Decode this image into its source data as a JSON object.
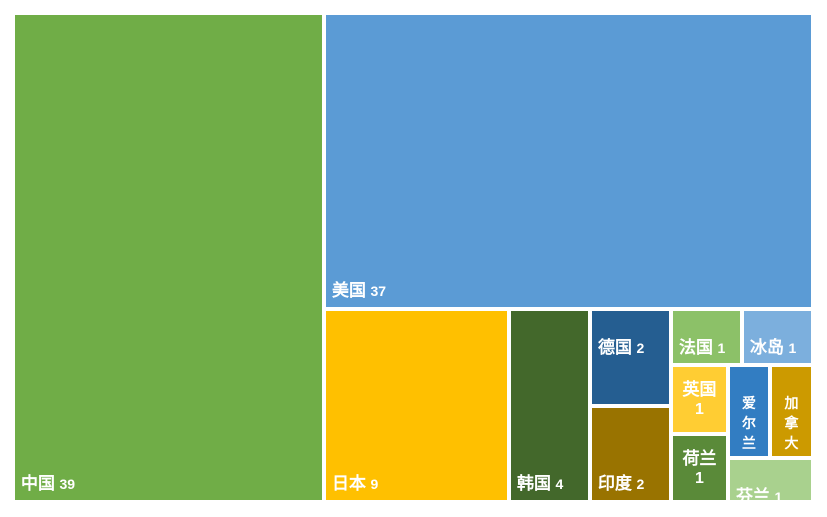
{
  "chart_data": {
    "type": "treemap",
    "items": [
      {
        "name": "中国",
        "value": 39,
        "color": "#70AD47"
      },
      {
        "name": "美国",
        "value": 37,
        "color": "#5B9BD5"
      },
      {
        "name": "日本",
        "value": 9,
        "color": "#FFC000"
      },
      {
        "name": "韩国",
        "value": 4,
        "color": "#43682B"
      },
      {
        "name": "德国",
        "value": 2,
        "color": "#255E91"
      },
      {
        "name": "印度",
        "value": 2,
        "color": "#997300"
      },
      {
        "name": "法国",
        "value": 1,
        "color": "#8CC168"
      },
      {
        "name": "冰岛",
        "value": 1,
        "color": "#7CAFDD"
      },
      {
        "name": "英国",
        "value": 1,
        "color": "#FFCD33"
      },
      {
        "name": "爱尔兰",
        "value": 1,
        "color": "#327DC2"
      },
      {
        "name": "加拿大",
        "value": 1,
        "color": "#CC9A00"
      },
      {
        "name": "荷兰",
        "value": 1,
        "color": "#5A8A39"
      },
      {
        "name": "芬兰",
        "value": 1,
        "color": "#A9D18E"
      }
    ]
  }
}
